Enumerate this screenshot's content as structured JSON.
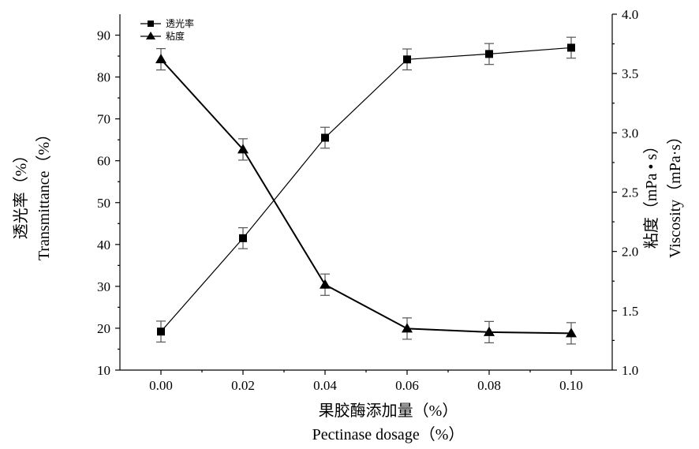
{
  "chart_data": {
    "type": "line",
    "x": [
      0.0,
      0.02,
      0.04,
      0.06,
      0.08,
      0.1
    ],
    "x_tick_labels": [
      "0.00",
      "0.02",
      "0.04",
      "0.06",
      "0.08",
      "0.10"
    ],
    "xlim": [
      -0.01,
      0.11
    ],
    "xlabel_cn": "果胶酶添加量（%）",
    "xlabel_en": "Pectinase dosage（%）",
    "ylabel_left_cn": "透光率（%）",
    "ylabel_left_en": "Transmittance（%）",
    "ylabel_right_cn": "粘度（mPa • s）",
    "ylabel_right_en": "Viscosity（mPa·s）",
    "ylim_left": [
      10,
      95
    ],
    "ylim_right": [
      1.0,
      4.0
    ],
    "y_left_ticks": [
      10,
      20,
      30,
      40,
      50,
      60,
      70,
      80,
      90
    ],
    "y_right_ticks": [
      "1.0",
      "1.5",
      "2.0",
      "2.5",
      "3.0",
      "3.5",
      "4.0"
    ],
    "legend_position": "top-left",
    "series": [
      {
        "name": "透光率",
        "axis": "left",
        "marker": "square",
        "values": [
          19.2,
          41.5,
          65.5,
          84.2,
          85.5,
          87.0
        ],
        "errors": [
          2.5,
          2.5,
          2.5,
          2.5,
          2.5,
          2.5
        ]
      },
      {
        "name": "粘度",
        "axis": "right",
        "marker": "triangle",
        "values": [
          3.62,
          2.86,
          1.72,
          1.35,
          1.32,
          1.31
        ],
        "errors": [
          0.09,
          0.09,
          0.09,
          0.09,
          0.09,
          0.09
        ]
      }
    ]
  }
}
